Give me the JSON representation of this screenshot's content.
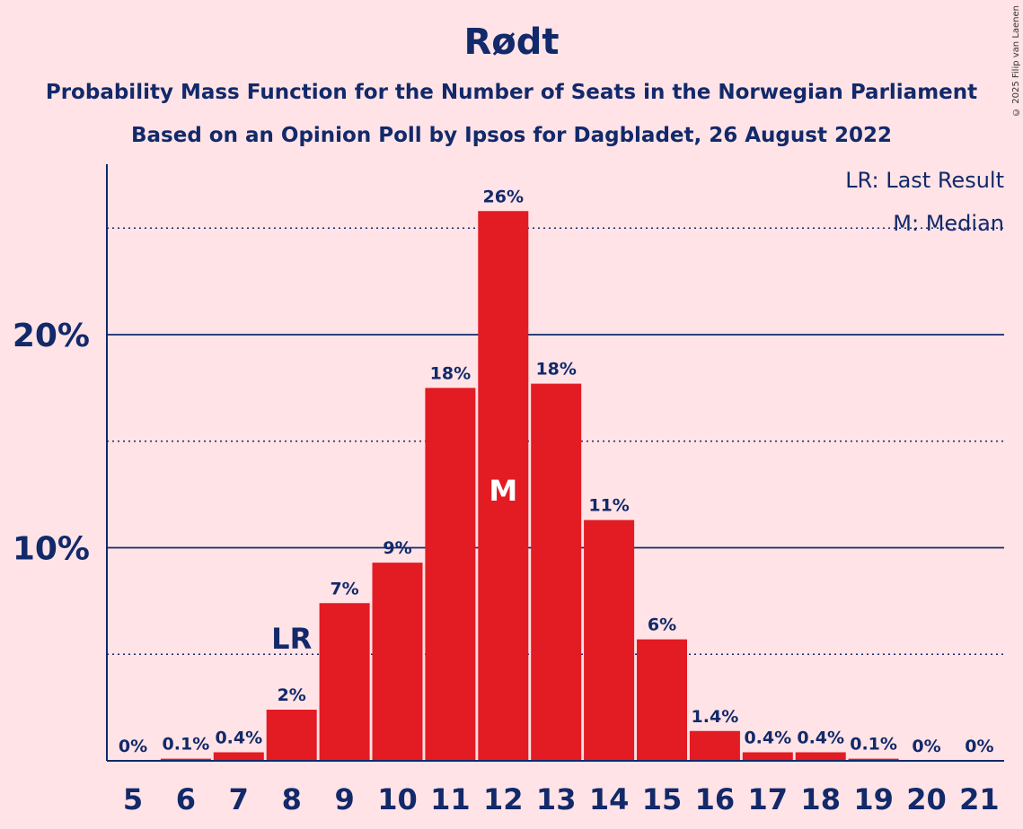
{
  "title": "Rødt",
  "subtitle_line1": "Probability Mass Function for the Number of Seats in the Norwegian Parliament",
  "subtitle_line2": "Based on an Opinion Poll by Ipsos for Dagbladet, 26 August 2022",
  "copyright": "© 2025 Filip van Laenen",
  "legend": {
    "last_result": "LR: Last Result",
    "median": "M: Median"
  },
  "colors": {
    "background": "#FFE3E6",
    "bar": "#E31B23",
    "text": "#12296A"
  },
  "chart_data": {
    "type": "bar",
    "categories": [
      5,
      6,
      7,
      8,
      9,
      10,
      11,
      12,
      13,
      14,
      15,
      16,
      17,
      18,
      19,
      20,
      21
    ],
    "values": [
      0,
      0.1,
      0.4,
      2.4,
      7.4,
      9.3,
      17.5,
      25.8,
      17.7,
      11.3,
      5.7,
      1.4,
      0.4,
      0.4,
      0.1,
      0,
      0
    ],
    "data_labels": [
      "0%",
      "0.1%",
      "0.4%",
      "2%",
      "7%",
      "9%",
      "18%",
      "26%",
      "18%",
      "11%",
      "6%",
      "1.4%",
      "0.4%",
      "0.4%",
      "0.1%",
      "0%",
      "0%"
    ],
    "ylim": [
      0,
      28
    ],
    "yticks": [
      {
        "value": 10,
        "label": "10%"
      },
      {
        "value": 20,
        "label": "20%"
      }
    ],
    "minor_gridlines": [
      5,
      15,
      25
    ],
    "last_result": {
      "seats": 8,
      "label": "LR"
    },
    "median": {
      "seats": 12,
      "label": "M"
    },
    "legend_position": "top-right"
  }
}
